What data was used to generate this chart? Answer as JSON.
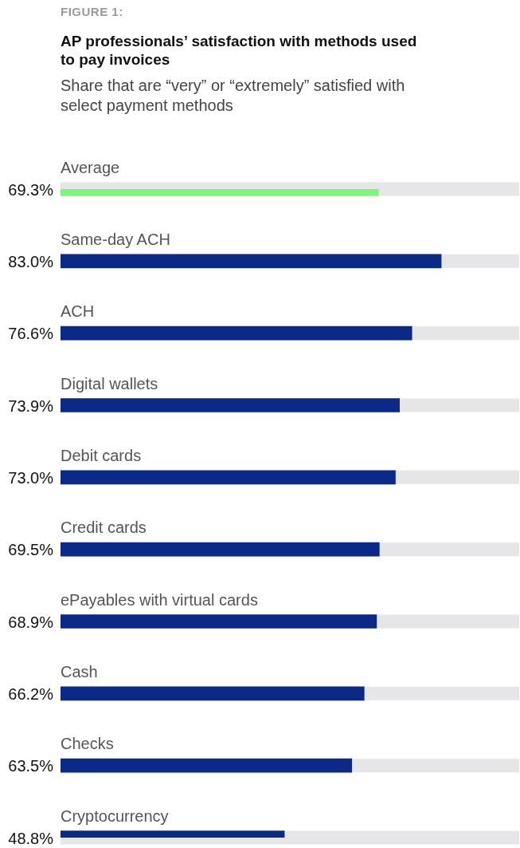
{
  "chart_data": {
    "type": "bar",
    "orientation": "horizontal",
    "title": "AP professionals’ satisfaction with methods used to pay invoices",
    "subtitle": "Share that are “very” or “extremely” satisfied with select payment methods",
    "annotations": [
      "FIGURE 1:"
    ],
    "categories": [
      "Average",
      "Same-day ACH",
      "ACH",
      "Digital wallets",
      "Debit cards",
      "Credit cards",
      "ePayables with virtual cards",
      "Cash",
      "Checks",
      "Cryptocurrency"
    ],
    "values": [
      69.3,
      83.0,
      76.6,
      73.9,
      73.0,
      69.5,
      68.9,
      66.2,
      63.5,
      48.8
    ],
    "value_labels": [
      "69.3%",
      "83.0%",
      "76.6%",
      "73.9%",
      "73.0%",
      "69.5%",
      "68.9%",
      "66.2%",
      "63.5%",
      "48.8%"
    ],
    "colors": [
      "#7df57b",
      "#0b2987",
      "#0b2987",
      "#0b2987",
      "#0b2987",
      "#0b2987",
      "#0b2987",
      "#0b2987",
      "#0b2987",
      "#0b2987"
    ],
    "xlim": [
      0,
      100
    ],
    "tick_labels": false
  }
}
